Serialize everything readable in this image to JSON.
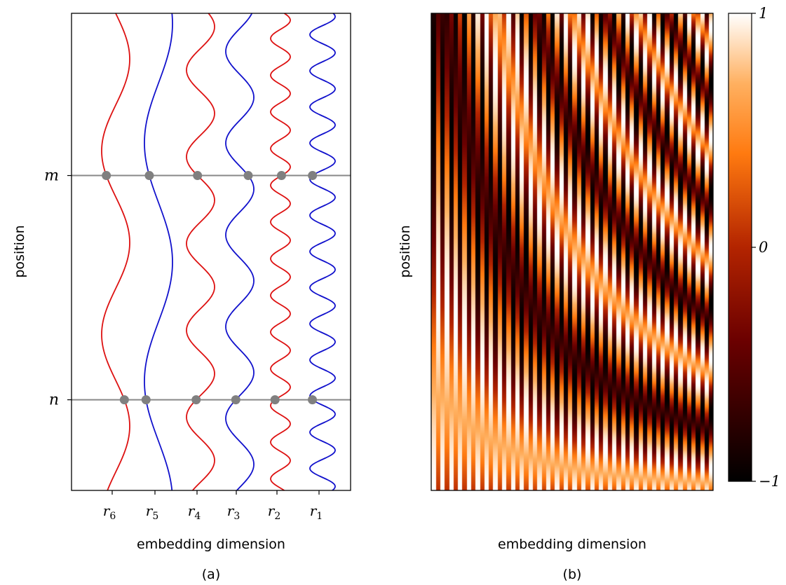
{
  "chart_data": [
    {
      "type": "line",
      "panel_label": "(a)",
      "xlabel": "embedding dimension",
      "ylabel": "position",
      "x_tick_labels": [
        {
          "base": "r",
          "sub": "6"
        },
        {
          "base": "r",
          "sub": "5"
        },
        {
          "base": "r",
          "sub": "4"
        },
        {
          "base": "r",
          "sub": "3"
        },
        {
          "base": "r",
          "sub": "2"
        },
        {
          "base": "r",
          "sub": "1"
        }
      ],
      "y_tick_labels": [
        "m",
        "n"
      ],
      "positions": {
        "m": 0.66,
        "n": 0.19
      },
      "series": [
        {
          "cycles": 2.6,
          "color": "#dd1111",
          "phase": 0.0
        },
        {
          "cycles": 2.0,
          "color": "#1111cc",
          "phase": 1.3
        },
        {
          "cycles": 5.5,
          "color": "#dd1111",
          "phase": 0.6
        },
        {
          "cycles": 5.2,
          "color": "#1111cc",
          "phase": 2.1
        },
        {
          "cycles": 13.0,
          "color": "#dd1111",
          "phase": 0.4
        },
        {
          "cycles": 13.2,
          "color": "#1111cc",
          "phase": 1.0
        }
      ],
      "line_color": "#888888",
      "marker_color": "#808080",
      "grid": false
    },
    {
      "type": "heatmap",
      "panel_label": "(b)",
      "xlabel": "embedding dimension",
      "ylabel": "position",
      "colormap": "gist_heat",
      "colorbar": {
        "ticks": [
          1,
          0,
          -1
        ],
        "tick_labels": [
          "1",
          "0",
          "−1"
        ],
        "range": [
          -1,
          1
        ]
      },
      "grid": false
    }
  ]
}
